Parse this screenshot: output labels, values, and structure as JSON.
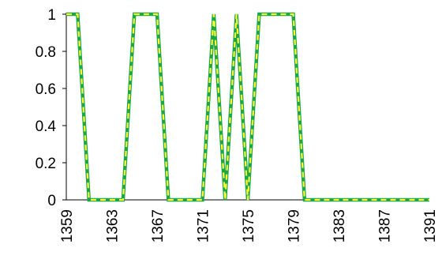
{
  "chart_data": {
    "type": "line",
    "title": "",
    "xlabel": "",
    "ylabel": "",
    "x": [
      1359,
      1360,
      1361,
      1362,
      1363,
      1364,
      1365,
      1366,
      1367,
      1368,
      1369,
      1370,
      1371,
      1372,
      1373,
      1374,
      1375,
      1376,
      1377,
      1378,
      1379,
      1380,
      1381,
      1382,
      1383,
      1384,
      1385,
      1386,
      1387,
      1388,
      1389,
      1390,
      1391
    ],
    "xlim": [
      1359,
      1391
    ],
    "ylim": [
      0,
      1
    ],
    "x_ticks": [
      1359,
      1363,
      1367,
      1371,
      1375,
      1379,
      1383,
      1387,
      1391
    ],
    "y_ticks": [
      0,
      0.2,
      0.4,
      0.6,
      0.8,
      1
    ],
    "y_tick_labels": [
      "0",
      "0.2",
      "0.4",
      "0.6",
      "0.8",
      "1"
    ],
    "series": [
      {
        "style": "solid",
        "color": "#1aa64a",
        "values": [
          1,
          1,
          0,
          0,
          0,
          0,
          1,
          1,
          1,
          0,
          0,
          0,
          0,
          1,
          0,
          1,
          0,
          1,
          1,
          1,
          1,
          0,
          0,
          0,
          0,
          0,
          0,
          0,
          0,
          0,
          0,
          0,
          0
        ]
      },
      {
        "style": "dashed",
        "color": "#ffff33",
        "values": [
          1,
          1,
          0,
          0,
          0,
          0,
          1,
          1,
          1,
          0,
          0,
          0,
          0,
          1,
          0,
          1,
          0,
          1,
          1,
          1,
          1,
          0,
          0,
          0,
          0,
          0,
          0,
          0,
          0,
          0,
          0,
          0,
          0
        ]
      }
    ],
    "grid": false,
    "legend": "none"
  }
}
